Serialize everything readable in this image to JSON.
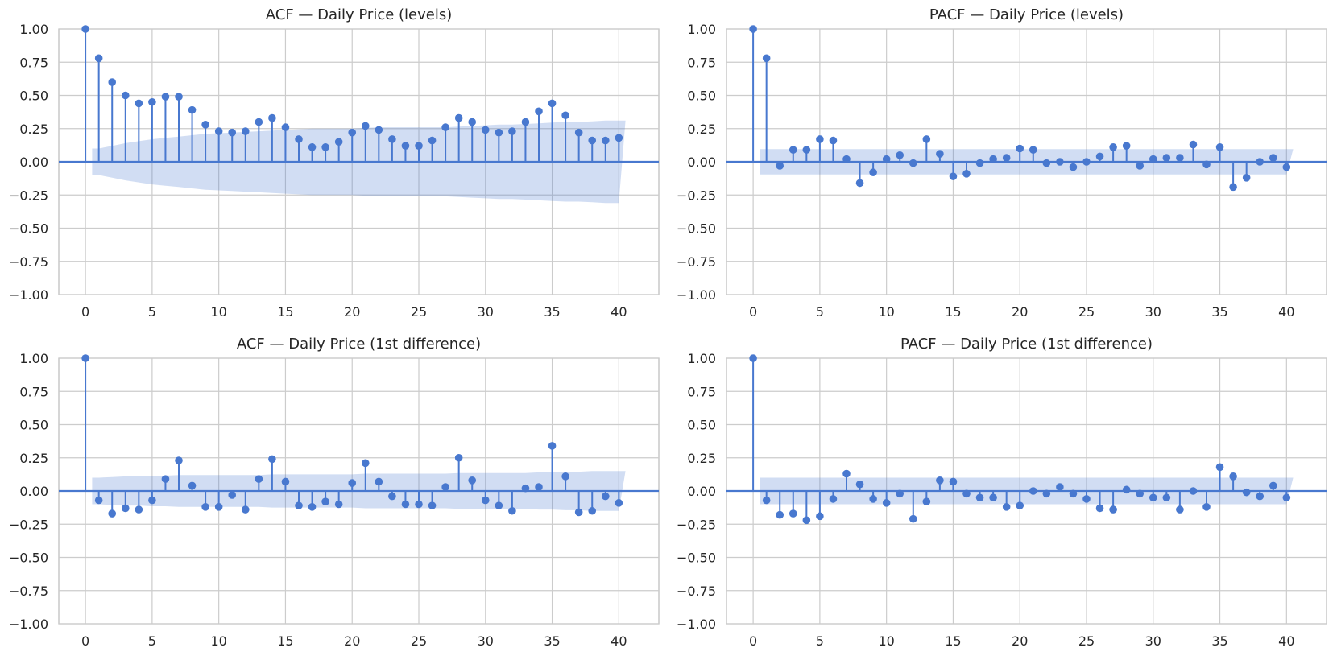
{
  "chart_data": [
    {
      "type": "stem",
      "title": "ACF — Daily Price (levels)",
      "lags": [
        0,
        1,
        2,
        3,
        4,
        5,
        6,
        7,
        8,
        9,
        10,
        11,
        12,
        13,
        14,
        15,
        16,
        17,
        18,
        19,
        20,
        21,
        22,
        23,
        24,
        25,
        26,
        27,
        28,
        29,
        30,
        31,
        32,
        33,
        34,
        35,
        36,
        37,
        38,
        39,
        40
      ],
      "values": [
        1.0,
        0.78,
        0.6,
        0.5,
        0.44,
        0.45,
        0.49,
        0.49,
        0.39,
        0.28,
        0.23,
        0.22,
        0.23,
        0.3,
        0.33,
        0.26,
        0.17,
        0.11,
        0.11,
        0.15,
        0.22,
        0.27,
        0.24,
        0.17,
        0.12,
        0.12,
        0.16,
        0.26,
        0.33,
        0.3,
        0.24,
        0.22,
        0.23,
        0.3,
        0.38,
        0.44,
        0.35,
        0.22,
        0.16,
        0.16,
        0.18
      ],
      "confint_upper": [
        0.1,
        0.1,
        0.12,
        0.14,
        0.155,
        0.17,
        0.18,
        0.19,
        0.2,
        0.21,
        0.215,
        0.22,
        0.225,
        0.23,
        0.235,
        0.24,
        0.245,
        0.25,
        0.25,
        0.25,
        0.25,
        0.255,
        0.26,
        0.26,
        0.26,
        0.26,
        0.26,
        0.26,
        0.265,
        0.27,
        0.275,
        0.28,
        0.28,
        0.285,
        0.29,
        0.295,
        0.3,
        0.3,
        0.305,
        0.31,
        0.31
      ],
      "xlim": [
        -2,
        43
      ],
      "ylim": [
        -1.0,
        1.0
      ],
      "xticks": [
        0,
        5,
        10,
        15,
        20,
        25,
        30,
        35,
        40
      ],
      "yticks": [
        "1.00",
        "0.75",
        "0.50",
        "0.25",
        "0.00",
        "−0.25",
        "−0.50",
        "−0.75",
        "−1.00"
      ],
      "xlabel": "",
      "ylabel": ""
    },
    {
      "type": "stem",
      "title": "PACF — Daily Price (levels)",
      "lags": [
        0,
        1,
        2,
        3,
        4,
        5,
        6,
        7,
        8,
        9,
        10,
        11,
        12,
        13,
        14,
        15,
        16,
        17,
        18,
        19,
        20,
        21,
        22,
        23,
        24,
        25,
        26,
        27,
        28,
        29,
        30,
        31,
        32,
        33,
        34,
        35,
        36,
        37,
        38,
        39,
        40
      ],
      "values": [
        1.0,
        0.78,
        -0.03,
        0.09,
        0.09,
        0.17,
        0.16,
        0.02,
        -0.16,
        -0.08,
        0.02,
        0.05,
        -0.01,
        0.17,
        0.06,
        -0.11,
        -0.09,
        -0.01,
        0.02,
        0.03,
        0.1,
        0.09,
        -0.01,
        0.0,
        -0.04,
        0.0,
        0.04,
        0.11,
        0.12,
        -0.03,
        0.02,
        0.03,
        0.03,
        0.13,
        -0.02,
        0.11,
        -0.19,
        -0.12,
        0.0,
        0.03,
        -0.04
      ],
      "confint_upper": 0.095,
      "xlim": [
        -2,
        43
      ],
      "ylim": [
        -1.0,
        1.0
      ],
      "xticks": [
        0,
        5,
        10,
        15,
        20,
        25,
        30,
        35,
        40
      ],
      "yticks": [
        "1.00",
        "0.75",
        "0.50",
        "0.25",
        "0.00",
        "−0.25",
        "−0.50",
        "−0.75",
        "−1.00"
      ],
      "xlabel": "",
      "ylabel": ""
    },
    {
      "type": "stem",
      "title": "ACF — Daily Price (1st difference)",
      "lags": [
        0,
        1,
        2,
        3,
        4,
        5,
        6,
        7,
        8,
        9,
        10,
        11,
        12,
        13,
        14,
        15,
        16,
        17,
        18,
        19,
        20,
        21,
        22,
        23,
        24,
        25,
        26,
        27,
        28,
        29,
        30,
        31,
        32,
        33,
        34,
        35,
        36,
        37,
        38,
        39,
        40
      ],
      "values": [
        1.0,
        -0.07,
        -0.17,
        -0.13,
        -0.14,
        -0.07,
        0.09,
        0.23,
        0.04,
        -0.12,
        -0.12,
        -0.03,
        -0.14,
        0.09,
        0.24,
        0.07,
        -0.11,
        -0.12,
        -0.08,
        -0.1,
        0.06,
        0.21,
        0.07,
        -0.04,
        -0.1,
        -0.1,
        -0.11,
        0.03,
        0.25,
        0.08,
        -0.07,
        -0.11,
        -0.15,
        0.02,
        0.03,
        0.34,
        0.11,
        -0.16,
        -0.15,
        -0.04,
        -0.09
      ],
      "confint_upper": [
        0.1,
        0.1,
        0.105,
        0.11,
        0.11,
        0.115,
        0.115,
        0.12,
        0.12,
        0.12,
        0.12,
        0.12,
        0.12,
        0.12,
        0.125,
        0.125,
        0.125,
        0.125,
        0.125,
        0.125,
        0.125,
        0.13,
        0.13,
        0.13,
        0.13,
        0.13,
        0.13,
        0.13,
        0.135,
        0.135,
        0.135,
        0.135,
        0.135,
        0.135,
        0.14,
        0.14,
        0.145,
        0.145,
        0.15,
        0.15,
        0.15
      ],
      "xlim": [
        -2,
        43
      ],
      "ylim": [
        -1.0,
        1.0
      ],
      "xticks": [
        0,
        5,
        10,
        15,
        20,
        25,
        30,
        35,
        40
      ],
      "yticks": [
        "1.00",
        "0.75",
        "0.50",
        "0.25",
        "0.00",
        "−0.25",
        "−0.50",
        "−0.75",
        "−1.00"
      ],
      "xlabel": "",
      "ylabel": ""
    },
    {
      "type": "stem",
      "title": "PACF — Daily Price (1st difference)",
      "lags": [
        0,
        1,
        2,
        3,
        4,
        5,
        6,
        7,
        8,
        9,
        10,
        11,
        12,
        13,
        14,
        15,
        16,
        17,
        18,
        19,
        20,
        21,
        22,
        23,
        24,
        25,
        26,
        27,
        28,
        29,
        30,
        31,
        32,
        33,
        34,
        35,
        36,
        37,
        38,
        39,
        40
      ],
      "values": [
        1.0,
        -0.07,
        -0.18,
        -0.17,
        -0.22,
        -0.19,
        -0.06,
        0.13,
        0.05,
        -0.06,
        -0.09,
        -0.02,
        -0.21,
        -0.08,
        0.08,
        0.07,
        -0.02,
        -0.05,
        -0.05,
        -0.12,
        -0.11,
        0.0,
        -0.02,
        0.03,
        -0.02,
        -0.06,
        -0.13,
        -0.14,
        0.01,
        -0.02,
        -0.05,
        -0.05,
        -0.14,
        0.0,
        -0.12,
        0.18,
        0.11,
        -0.01,
        -0.04,
        0.04,
        -0.05
      ],
      "confint_upper": 0.1,
      "xlim": [
        -2,
        43
      ],
      "ylim": [
        -1.0,
        1.0
      ],
      "xticks": [
        0,
        5,
        10,
        15,
        20,
        25,
        30,
        35,
        40
      ],
      "yticks": [
        "1.00",
        "0.75",
        "0.50",
        "0.25",
        "0.00",
        "−0.25",
        "−0.50",
        "−0.75",
        "−1.00"
      ],
      "xlabel": "",
      "ylabel": ""
    }
  ],
  "colors": {
    "stem": "#4878cf",
    "band": "#4878cf",
    "grid": "#cccccc",
    "frame": "#bbbbbb"
  }
}
